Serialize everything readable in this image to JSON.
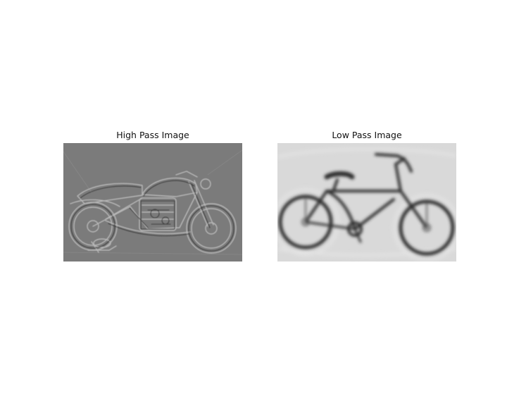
{
  "figure": {
    "panels": [
      {
        "title": "High Pass Image",
        "subject": "motorcycle",
        "filter": "high-pass"
      },
      {
        "title": "Low Pass Image",
        "subject": "bicycle",
        "filter": "low-pass"
      }
    ],
    "colors": {
      "high_pass_background": "#7b7b7b",
      "high_pass_edge_light": "#b4b4b4",
      "high_pass_edge_dark": "#3e3e3e",
      "low_pass_background": "#d9d9d9",
      "low_pass_stroke": "#2e2e2e"
    }
  }
}
